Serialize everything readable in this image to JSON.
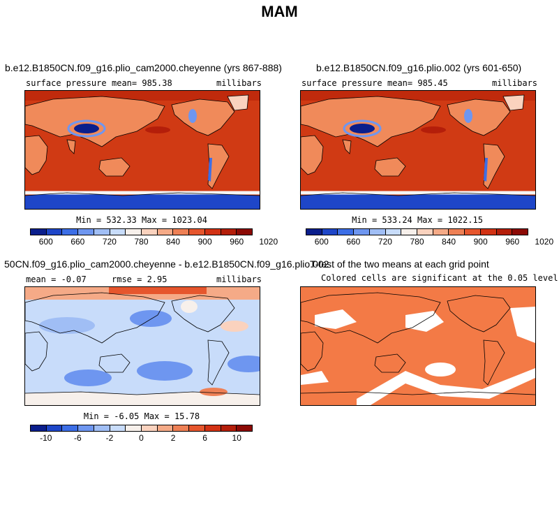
{
  "title": "MAM",
  "panels": [
    {
      "title": "b.e12.B1850CN.f09_g16.plio_cam2000.cheyenne (yrs 867-888)",
      "left_label": "surface pressure",
      "center_label": "mean= 985.38",
      "right_label": "millibars",
      "minmax": "Min = 532.33 Max = 1023.04"
    },
    {
      "title": "b.e12.B1850CN.f09_g16.plio.002 (yrs 601-650)",
      "left_label": "surface pressure",
      "center_label": "mean= 985.45",
      "right_label": "millibars",
      "minmax": "Min = 533.24 Max = 1022.15"
    },
    {
      "title": "50CN.f09_g16.plio_cam2000.cheyenne - b.e12.B1850CN.f09_g16.plio.002",
      "left_label": "mean = -0.07",
      "center_label": "rmse = 2.95",
      "right_label": "millibars",
      "minmax": "Min = -6.05 Max = 15.78"
    },
    {
      "title": "T-test of the two means at each grid point",
      "subtitle": "Colored cells are significant at the 0.05 level"
    }
  ],
  "colorbar_pressure": {
    "colors": [
      "#0a1e8c",
      "#1e46c8",
      "#3c6ee6",
      "#6e96f0",
      "#a0bef5",
      "#c8dcfa",
      "#f7f0eb",
      "#fad2be",
      "#f5aa87",
      "#ee8055",
      "#e6562d",
      "#d23214",
      "#b41e0a",
      "#8c0a05"
    ],
    "ticks": [
      "600",
      "660",
      "720",
      "780",
      "840",
      "900",
      "960",
      "1020"
    ]
  },
  "colorbar_diff": {
    "colors": [
      "#0a1e8c",
      "#1e46c8",
      "#3c6ee6",
      "#6e96f0",
      "#a0bef5",
      "#c8dcfa",
      "#f7f0eb",
      "#fad2be",
      "#f5aa87",
      "#ee8055",
      "#e6562d",
      "#d23214",
      "#b41e0a",
      "#8c0a05"
    ],
    "ticks": [
      "-10",
      "-6",
      "-2",
      "0",
      "2",
      "6",
      "10"
    ]
  },
  "colors": {
    "pressure_ocean": "#d03a14",
    "pressure_land": "#f08a5a",
    "diff_background": "#c8dcfa",
    "ttest_significant": "#f37a46"
  }
}
